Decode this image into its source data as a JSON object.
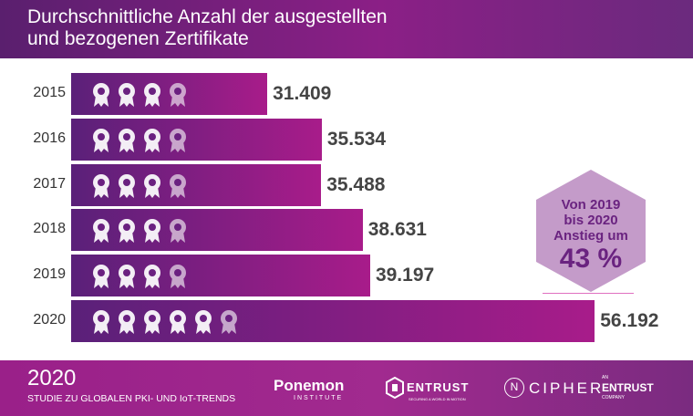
{
  "header": {
    "title_line1": "Durchschnittliche Anzahl der ausgestellten",
    "title_line2": "und bezogenen Zertifikate"
  },
  "chart_data": {
    "type": "bar",
    "orientation": "horizontal",
    "categories": [
      "2015",
      "2016",
      "2017",
      "2018",
      "2019",
      "2020"
    ],
    "values": [
      31409,
      35534,
      35488,
      38631,
      39197,
      56192
    ],
    "value_labels": [
      "31.409",
      "35.534",
      "35.488",
      "38.631",
      "39.197",
      "56.192"
    ],
    "icon": "award-ribbon-icon",
    "icon_counts": [
      4,
      4,
      4,
      4,
      4,
      6
    ],
    "bar_gradient": [
      "#5a2079",
      "#a81c8a"
    ]
  },
  "callout": {
    "line1": "Von 2019",
    "line2": "bis 2020",
    "line3": "Anstieg um",
    "value": "43 %",
    "color": "#c49bc9"
  },
  "footer": {
    "year": "2020",
    "subtitle": "STUDIE ZU GLOBALEN PKI- UND IoT-TRENDS",
    "logo1": "Ponemon",
    "logo1_sub": "INSTITUTE",
    "logo2": "ENTRUST",
    "logo2_sub": "SECURING A WORLD IN MOTION",
    "logo3": "CIPHER",
    "logo3_mark": "N",
    "logo4_pre": "AN",
    "logo4": "ENTRUST",
    "logo4_sub": "COMPANY"
  }
}
